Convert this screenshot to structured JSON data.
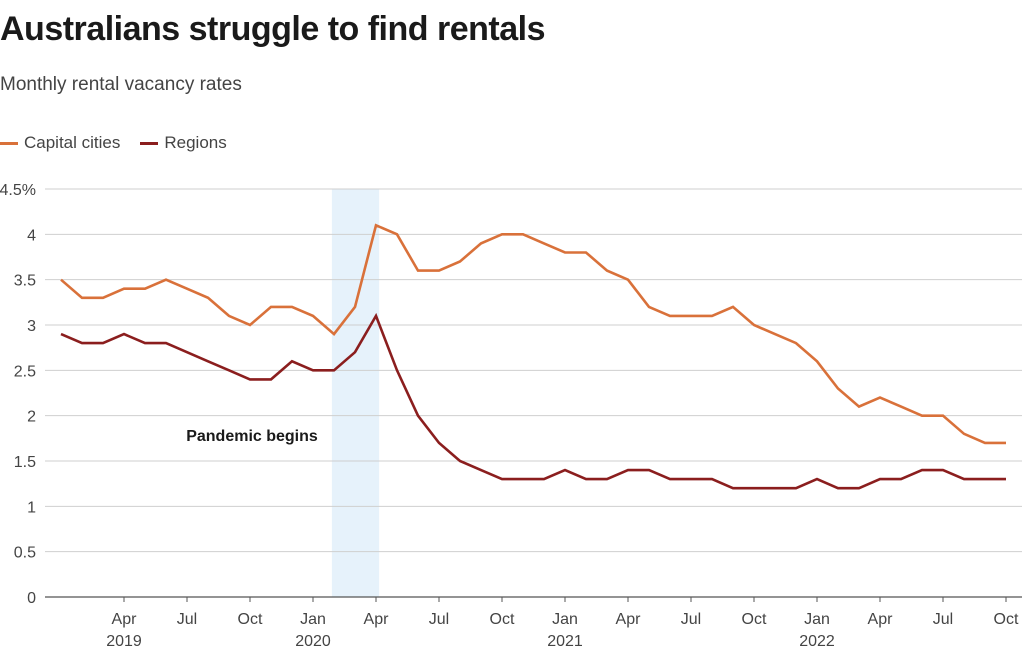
{
  "header": {
    "title": "Australians struggle to find rentals",
    "subtitle": "Monthly rental vacancy rates"
  },
  "legend": [
    {
      "label": "Capital cities",
      "color": "#d9713a"
    },
    {
      "label": "Regions",
      "color": "#8b1e1e"
    }
  ],
  "chart_data": {
    "type": "line",
    "title": "Australians struggle to find rentals",
    "subtitle": "Monthly rental vacancy rates",
    "xlabel": "",
    "ylabel": "",
    "ylim": [
      0,
      4.5
    ],
    "yticks": [
      {
        "value": 0,
        "label": "0"
      },
      {
        "value": 0.5,
        "label": "0.5"
      },
      {
        "value": 1,
        "label": "1"
      },
      {
        "value": 1.5,
        "label": "1.5"
      },
      {
        "value": 2,
        "label": "2"
      },
      {
        "value": 2.5,
        "label": "2.5"
      },
      {
        "value": 3,
        "label": "3"
      },
      {
        "value": 3.5,
        "label": "3.5"
      },
      {
        "value": 4,
        "label": "4"
      },
      {
        "value": 4.5,
        "label": "4.5%"
      }
    ],
    "x": [
      "2019-01",
      "2019-02",
      "2019-03",
      "2019-04",
      "2019-05",
      "2019-06",
      "2019-07",
      "2019-08",
      "2019-09",
      "2019-10",
      "2019-11",
      "2019-12",
      "2020-01",
      "2020-02",
      "2020-03",
      "2020-04",
      "2020-05",
      "2020-06",
      "2020-07",
      "2020-08",
      "2020-09",
      "2020-10",
      "2020-11",
      "2020-12",
      "2021-01",
      "2021-02",
      "2021-03",
      "2021-04",
      "2021-05",
      "2021-06",
      "2021-07",
      "2021-08",
      "2021-09",
      "2021-10",
      "2021-11",
      "2021-12",
      "2022-01",
      "2022-02",
      "2022-03",
      "2022-04",
      "2022-05",
      "2022-06",
      "2022-07",
      "2022-08",
      "2022-09",
      "2022-10"
    ],
    "series": [
      {
        "name": "Capital cities",
        "color": "#d9713a",
        "values": [
          3.5,
          3.3,
          3.3,
          3.4,
          3.4,
          3.5,
          3.4,
          3.3,
          3.1,
          3.0,
          3.2,
          3.2,
          3.1,
          2.9,
          3.2,
          4.1,
          4.0,
          3.6,
          3.6,
          3.7,
          3.9,
          4.0,
          4.0,
          3.9,
          3.8,
          3.8,
          3.6,
          3.5,
          3.2,
          3.1,
          3.1,
          3.1,
          3.2,
          3.0,
          2.9,
          2.8,
          2.6,
          2.3,
          2.1,
          2.2,
          2.1,
          2.0,
          2.0,
          1.8,
          1.7,
          1.7
        ]
      },
      {
        "name": "Regions",
        "color": "#8b1e1e",
        "values": [
          2.9,
          2.8,
          2.8,
          2.9,
          2.8,
          2.8,
          2.7,
          2.6,
          2.5,
          2.4,
          2.4,
          2.6,
          2.5,
          2.5,
          2.7,
          3.1,
          2.5,
          2.0,
          1.7,
          1.5,
          1.4,
          1.3,
          1.3,
          1.3,
          1.4,
          1.3,
          1.3,
          1.4,
          1.4,
          1.3,
          1.3,
          1.3,
          1.2,
          1.2,
          1.2,
          1.2,
          1.3,
          1.2,
          1.2,
          1.3,
          1.3,
          1.4,
          1.4,
          1.3,
          1.3,
          1.3
        ]
      }
    ],
    "x_month_ticks": [
      {
        "x": "2019-04",
        "label": "Apr"
      },
      {
        "x": "2019-07",
        "label": "Jul"
      },
      {
        "x": "2019-10",
        "label": "Oct"
      },
      {
        "x": "2020-01",
        "label": "Jan"
      },
      {
        "x": "2020-04",
        "label": "Apr"
      },
      {
        "x": "2020-07",
        "label": "Jul"
      },
      {
        "x": "2020-10",
        "label": "Oct"
      },
      {
        "x": "2021-01",
        "label": "Jan"
      },
      {
        "x": "2021-04",
        "label": "Apr"
      },
      {
        "x": "2021-07",
        "label": "Jul"
      },
      {
        "x": "2021-10",
        "label": "Oct"
      },
      {
        "x": "2022-01",
        "label": "Jan"
      },
      {
        "x": "2022-04",
        "label": "Apr"
      },
      {
        "x": "2022-07",
        "label": "Jul"
      },
      {
        "x": "2022-10",
        "label": "Oct"
      }
    ],
    "x_year_ticks": [
      {
        "x": "2019-04",
        "label": "2019"
      },
      {
        "x": "2020-01",
        "label": "2020"
      },
      {
        "x": "2021-01",
        "label": "2021"
      },
      {
        "x": "2022-01",
        "label": "2022"
      }
    ],
    "annotations": [
      {
        "label": "Pandemic begins",
        "x_start": "2020-02",
        "x_end": "2020-04",
        "color": "#e6f2fb"
      }
    ],
    "grid": true,
    "legend_position": "top-left"
  }
}
